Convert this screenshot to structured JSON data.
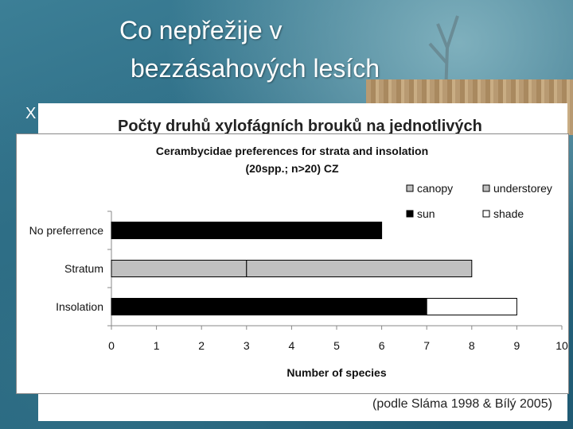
{
  "slide": {
    "title_line1": "Co nepřežije v",
    "title_line2": "bezzásahových lesích",
    "bullet": "X",
    "inner_title": "Počty druhů xylofágních brouků na jednotlivých",
    "caption": "(podle Sláma 1998 & Bílý 2005)"
  },
  "chart_data": {
    "type": "bar",
    "orientation": "horizontal",
    "stacked": true,
    "title_line1": "Cerambycidae preferences for strata and insolation",
    "title_line2": "(20spp.; n>20) CZ",
    "xlabel": "Number of species",
    "ylabel": "",
    "xlim": [
      0,
      10
    ],
    "xticks": [
      "0",
      "1",
      "2",
      "3",
      "4",
      "5",
      "6",
      "7",
      "8",
      "9",
      "10"
    ],
    "categories": [
      "No preferrence",
      "Stratum",
      "Insolation"
    ],
    "series": [
      {
        "name": "canopy",
        "color": "#c0c0c0",
        "values": [
          0,
          3,
          0
        ]
      },
      {
        "name": "understorey",
        "color": "#c0c0c0",
        "values": [
          0,
          5,
          0
        ]
      },
      {
        "name": "sun",
        "color": "#000000",
        "values": [
          0,
          0,
          7
        ]
      },
      {
        "name": "shade",
        "color": "#ffffff",
        "values": [
          0,
          0,
          2
        ]
      },
      {
        "name": "",
        "color": "#000000",
        "values": [
          6,
          0,
          0
        ]
      }
    ],
    "legend_position": "top-right",
    "grid": false
  }
}
